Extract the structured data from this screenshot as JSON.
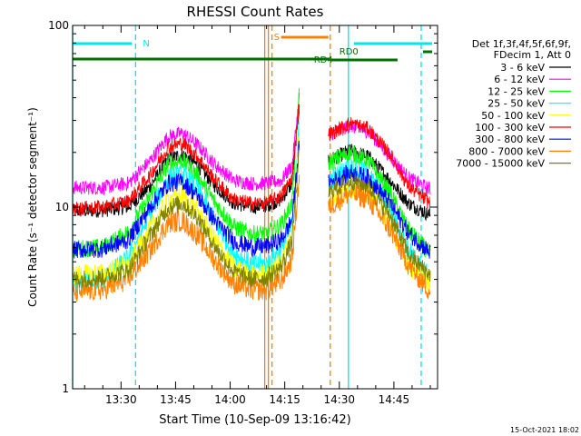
{
  "chart_data": {
    "type": "line",
    "title": "RHESSI Count Rates",
    "xlabel": "Start Time (10-Sep-09 13:16:42)",
    "ylabel": "Count Rate (s⁻¹ detector segment⁻¹)",
    "yscale": "log",
    "ylim": [
      1,
      100
    ],
    "xlim": [
      "13:16:42",
      "14:57:00"
    ],
    "x_ticks": [
      "13:30",
      "13:45",
      "14:00",
      "14:15",
      "14:30",
      "14:45"
    ],
    "y_ticks": [
      "1",
      "10",
      "100"
    ],
    "legend_header": [
      "Det 1f,3f,4f,5f,6f,9f,",
      "FDecim 1, Att 0"
    ],
    "legend_position": "right",
    "timestamp": "15-Oct-2021 18:02",
    "gap": [
      "14:20:00",
      "14:25:30"
    ],
    "bars": [
      {
        "label": "N",
        "color": "#00e5ee",
        "segments": [
          [
            "13:16:42",
            "13:33:00"
          ],
          [
            "14:34:00",
            "14:55:30"
          ]
        ]
      },
      {
        "label": "S",
        "color": "#ff8000",
        "segments": [
          [
            "14:14:00",
            "14:27:00"
          ]
        ]
      },
      {
        "label": "RD0",
        "color": "#007000",
        "segments": [
          [
            "14:53:00",
            "14:55:30"
          ]
        ]
      },
      {
        "label": "RD4",
        "color": "#007000",
        "segments": [
          [
            "13:16:42",
            "14:27:30"
          ],
          [
            "14:27:30",
            "14:46:00"
          ]
        ]
      }
    ],
    "vlines": [
      {
        "t": "13:16:42",
        "color": "#00e5ee",
        "style": "solid"
      },
      {
        "t": "13:34:00",
        "color": "#00e5ee",
        "style": "dashed"
      },
      {
        "t": "14:32:30",
        "color": "#00e5ee",
        "style": "solid"
      },
      {
        "t": "14:52:30",
        "color": "#00e5ee",
        "style": "dashed"
      },
      {
        "t": "14:09:30",
        "color": "#ff8000",
        "style": "solid"
      },
      {
        "t": "14:10:30",
        "color": "#ff8000",
        "style": "solid"
      },
      {
        "t": "14:11:30",
        "color": "#ff8000",
        "style": "dashed"
      },
      {
        "t": "14:27:30",
        "color": "#ff8000",
        "style": "dashed"
      }
    ],
    "series": [
      {
        "name": "3 - 6 keV",
        "color": "#000000",
        "noise": 0.04,
        "points": [
          [
            "13:16:42",
            9.5
          ],
          [
            "13:25",
            9.6
          ],
          [
            "13:32",
            10
          ],
          [
            "13:38",
            13
          ],
          [
            "13:43",
            18.5
          ],
          [
            "13:47",
            19.5
          ],
          [
            "13:51",
            17
          ],
          [
            "13:56",
            13
          ],
          [
            "14:01",
            10.5
          ],
          [
            "14:06",
            10
          ],
          [
            "14:10",
            10.2
          ],
          [
            "14:14",
            11
          ],
          [
            "14:17",
            13.5
          ],
          [
            "14:19",
            37
          ],
          [
            "14:27",
            18
          ],
          [
            "14:33",
            20.5
          ],
          [
            "14:38",
            19
          ],
          [
            "14:44",
            14
          ],
          [
            "14:49",
            10.5
          ],
          [
            "14:55",
            9
          ]
        ]
      },
      {
        "name": "6 - 12 keV",
        "color": "#ff00ff",
        "noise": 0.04,
        "points": [
          [
            "13:16:42",
            12.8
          ],
          [
            "13:25",
            12.8
          ],
          [
            "13:32",
            13.5
          ],
          [
            "13:38",
            18
          ],
          [
            "13:43",
            24.5
          ],
          [
            "13:47",
            25.5
          ],
          [
            "13:51",
            22
          ],
          [
            "13:56",
            17
          ],
          [
            "14:01",
            14
          ],
          [
            "14:06",
            13.5
          ],
          [
            "14:10",
            13.5
          ],
          [
            "14:14",
            14
          ],
          [
            "14:17",
            17
          ],
          [
            "14:19",
            40
          ],
          [
            "14:27",
            25
          ],
          [
            "14:33",
            28
          ],
          [
            "14:38",
            26
          ],
          [
            "14:44",
            19
          ],
          [
            "14:49",
            14.5
          ],
          [
            "14:55",
            12.5
          ]
        ]
      },
      {
        "name": "12 - 25 keV",
        "color": "#00ff00",
        "noise": 0.05,
        "points": [
          [
            "13:16:42",
            5.9
          ],
          [
            "13:25",
            6
          ],
          [
            "13:32",
            7.3
          ],
          [
            "13:38",
            11.5
          ],
          [
            "13:43",
            17.5
          ],
          [
            "13:47",
            18
          ],
          [
            "13:51",
            15
          ],
          [
            "13:56",
            10.5
          ],
          [
            "14:01",
            7.8
          ],
          [
            "14:06",
            7.1
          ],
          [
            "14:10",
            7.2
          ],
          [
            "14:14",
            8
          ],
          [
            "14:17",
            10.5
          ],
          [
            "14:19",
            42
          ],
          [
            "14:27",
            17.5
          ],
          [
            "14:33",
            20
          ],
          [
            "14:38",
            18
          ],
          [
            "14:44",
            12
          ],
          [
            "14:49",
            7.5
          ],
          [
            "14:55",
            5.5
          ]
        ]
      },
      {
        "name": "25 - 50 keV",
        "color": "#00ffff",
        "noise": 0.06,
        "points": [
          [
            "13:16:42",
            3.8
          ],
          [
            "13:25",
            4
          ],
          [
            "13:32",
            5.2
          ],
          [
            "13:38",
            9.2
          ],
          [
            "13:43",
            14.5
          ],
          [
            "13:47",
            15
          ],
          [
            "13:51",
            12.5
          ],
          [
            "13:56",
            8.2
          ],
          [
            "14:01",
            5.6
          ],
          [
            "14:06",
            4.8
          ],
          [
            "14:10",
            4.9
          ],
          [
            "14:14",
            5.8
          ],
          [
            "14:17",
            8
          ],
          [
            "14:19",
            28
          ],
          [
            "14:27",
            14
          ],
          [
            "14:33",
            16.5
          ],
          [
            "14:38",
            15
          ],
          [
            "14:44",
            10
          ],
          [
            "14:49",
            5.8
          ],
          [
            "14:55",
            4
          ]
        ]
      },
      {
        "name": "50 - 100 keV",
        "color": "#ffff00",
        "noise": 0.06,
        "points": [
          [
            "13:16:42",
            4.2
          ],
          [
            "13:25",
            4.3
          ],
          [
            "13:32",
            4.8
          ],
          [
            "13:38",
            7.5
          ],
          [
            "13:43",
            11
          ],
          [
            "13:47",
            11.5
          ],
          [
            "13:51",
            9.5
          ],
          [
            "13:56",
            6.5
          ],
          [
            "14:01",
            4.6
          ],
          [
            "14:06",
            4.2
          ],
          [
            "14:10",
            4.3
          ],
          [
            "14:14",
            5
          ],
          [
            "14:17",
            7
          ],
          [
            "14:19",
            25
          ],
          [
            "14:27",
            11
          ],
          [
            "14:33",
            13
          ],
          [
            "14:38",
            12
          ],
          [
            "14:44",
            8
          ],
          [
            "14:49",
            4.8
          ],
          [
            "14:55",
            3.8
          ]
        ]
      },
      {
        "name": "100 - 300 keV",
        "color": "#ff0000",
        "noise": 0.04,
        "points": [
          [
            "13:16:42",
            9.8
          ],
          [
            "13:25",
            10
          ],
          [
            "13:32",
            10.8
          ],
          [
            "13:38",
            15
          ],
          [
            "13:43",
            21.5
          ],
          [
            "13:47",
            22.5
          ],
          [
            "13:51",
            19
          ],
          [
            "13:56",
            14
          ],
          [
            "14:01",
            11
          ],
          [
            "14:06",
            10.5
          ],
          [
            "14:10",
            10.5
          ],
          [
            "14:14",
            11.5
          ],
          [
            "14:17",
            14.5
          ],
          [
            "14:19",
            38
          ],
          [
            "14:27",
            25
          ],
          [
            "14:33",
            29
          ],
          [
            "14:38",
            27
          ],
          [
            "14:44",
            19.5
          ],
          [
            "14:49",
            13
          ],
          [
            "14:55",
            10.5
          ]
        ]
      },
      {
        "name": "300 - 800 keV",
        "color": "#0000ff",
        "noise": 0.05,
        "points": [
          [
            "13:16:42",
            5.8
          ],
          [
            "13:25",
            5.9
          ],
          [
            "13:32",
            6.6
          ],
          [
            "13:38",
            10
          ],
          [
            "13:43",
            13.5
          ],
          [
            "13:47",
            13.8
          ],
          [
            "13:51",
            11.5
          ],
          [
            "13:56",
            8.3
          ],
          [
            "14:01",
            6.5
          ],
          [
            "14:06",
            6
          ],
          [
            "14:10",
            6.1
          ],
          [
            "14:14",
            6.6
          ],
          [
            "14:17",
            8.5
          ],
          [
            "14:19",
            22
          ],
          [
            "14:27",
            13.5
          ],
          [
            "14:33",
            15.5
          ],
          [
            "14:38",
            14.5
          ],
          [
            "14:44",
            10.5
          ],
          [
            "14:49",
            7.2
          ],
          [
            "14:55",
            5.6
          ]
        ]
      },
      {
        "name": "800 - 7000 keV",
        "color": "#ff8000",
        "noise": 0.06,
        "points": [
          [
            "13:16:42",
            3.4
          ],
          [
            "13:25",
            3.5
          ],
          [
            "13:32",
            4
          ],
          [
            "13:38",
            5.8
          ],
          [
            "13:43",
            8.2
          ],
          [
            "13:47",
            8.4
          ],
          [
            "13:51",
            7
          ],
          [
            "13:56",
            5
          ],
          [
            "14:01",
            3.8
          ],
          [
            "14:06",
            3.5
          ],
          [
            "14:10",
            3.5
          ],
          [
            "14:14",
            3.9
          ],
          [
            "14:17",
            5.2
          ],
          [
            "14:19",
            15
          ],
          [
            "14:27",
            10
          ],
          [
            "14:33",
            12
          ],
          [
            "14:38",
            11
          ],
          [
            "14:44",
            7.5
          ],
          [
            "14:49",
            4.8
          ],
          [
            "14:55",
            3.4
          ]
        ]
      },
      {
        "name": "7000 - 15000 keV",
        "color": "#808000",
        "noise": 0.05,
        "points": [
          [
            "13:16:42",
            4
          ],
          [
            "13:25",
            4.1
          ],
          [
            "13:32",
            4.5
          ],
          [
            "13:38",
            7
          ],
          [
            "13:43",
            10
          ],
          [
            "13:47",
            10.5
          ],
          [
            "13:51",
            8.8
          ],
          [
            "13:56",
            6
          ],
          [
            "14:01",
            4.4
          ],
          [
            "14:06",
            4
          ],
          [
            "14:10",
            4.1
          ],
          [
            "14:14",
            4.7
          ],
          [
            "14:17",
            6.5
          ],
          [
            "14:19",
            20
          ],
          [
            "14:27",
            12
          ],
          [
            "14:33",
            14
          ],
          [
            "14:38",
            13
          ],
          [
            "14:44",
            9
          ],
          [
            "14:49",
            5.5
          ],
          [
            "14:55",
            4.2
          ]
        ]
      }
    ]
  }
}
